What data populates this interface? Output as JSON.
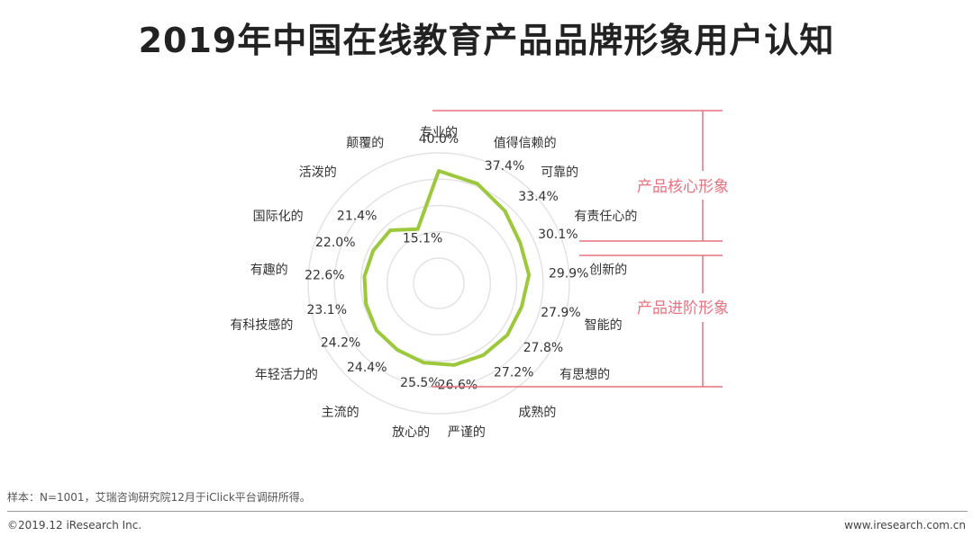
{
  "title": "2019年中国在线教育产品品牌形象用户认知",
  "chart_data": {
    "type": "radar",
    "title": "",
    "categories": [
      "专业的",
      "值得信赖的",
      "可靠的",
      "有责任心的",
      "创新的",
      "智能的",
      "有思想的",
      "成熟的",
      "严谨的",
      "放心的",
      "主流的",
      "年轻活力的",
      "有科技感的",
      "有趣的",
      "国际化的",
      "活泼的",
      "颠覆的"
    ],
    "series": [
      {
        "values": [
          40.0,
          37.4,
          33.4,
          30.1,
          29.9,
          27.9,
          27.8,
          27.2,
          26.6,
          25.5,
          24.4,
          24.2,
          23.1,
          22.6,
          22.0,
          21.4,
          15.1
        ]
      }
    ],
    "value_labels": [
      "40.0%",
      "37.4%",
      "33.4%",
      "30.1%",
      "29.9%",
      "27.9%",
      "27.8%",
      "27.2%",
      "26.6%",
      "25.5%",
      "24.4%",
      "24.2%",
      "23.1%",
      "22.6%",
      "22.0%",
      "21.4%",
      "15.1%"
    ],
    "grid": true,
    "grid_levels": 4,
    "line_color": "#9CC83C",
    "brackets": [
      {
        "label": "产品核心形象"
      },
      {
        "label": "产品进阶形象"
      }
    ],
    "bracket_color": "#E8727F"
  },
  "note": "样本：N=1001，艾瑞咨询研究院12月于iClick平台调研所得。",
  "footer": {
    "copyright": "©2019.12 iResearch Inc.",
    "website": "www.iresearch.com.cn"
  }
}
